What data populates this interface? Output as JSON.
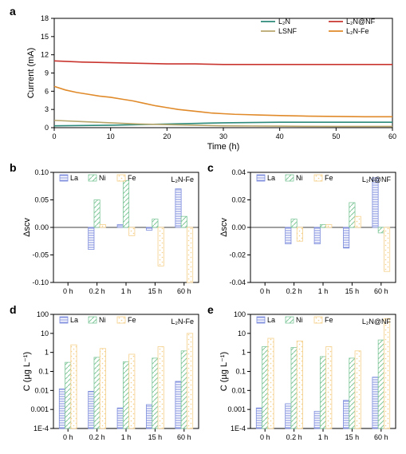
{
  "labels": {
    "a": "a",
    "b": "b",
    "c": "c",
    "d": "d",
    "e": "e"
  },
  "palette": {
    "la": "#7b8bdc",
    "ni": "#7fc79a",
    "fe": "#f5d08a",
    "l2n": "#2b8a7a",
    "l2n_nf": "#c9352e",
    "lsnf": "#b7a66b",
    "l2n_fe": "#e08a2a",
    "axis": "#000000",
    "grid": "#cccccc",
    "bg": "#ffffff"
  },
  "panelA": {
    "title": "Time (h)",
    "ylab": "Current (mA)",
    "xlim": [
      0,
      60
    ],
    "ylim": [
      0,
      18
    ],
    "xticks": [
      0,
      10,
      20,
      30,
      40,
      50,
      60
    ],
    "yticks": [
      0,
      3,
      6,
      9,
      12,
      15,
      18
    ],
    "legend": [
      {
        "name": "L₂N",
        "key": "l2n"
      },
      {
        "name": "L₂N@NF",
        "key": "l2n_nf"
      },
      {
        "name": "LSNF",
        "key": "lsnf"
      },
      {
        "name": "L₂N-Fe",
        "key": "l2n_fe"
      }
    ],
    "series": {
      "l2n": [
        [
          0,
          0.3
        ],
        [
          5,
          0.35
        ],
        [
          10,
          0.4
        ],
        [
          15,
          0.5
        ],
        [
          20,
          0.6
        ],
        [
          25,
          0.7
        ],
        [
          30,
          0.8
        ],
        [
          35,
          0.85
        ],
        [
          40,
          0.9
        ],
        [
          45,
          0.9
        ],
        [
          50,
          0.9
        ],
        [
          55,
          0.9
        ],
        [
          60,
          0.9
        ]
      ],
      "lsnf": [
        [
          0,
          1.2
        ],
        [
          5,
          1.0
        ],
        [
          10,
          0.8
        ],
        [
          15,
          0.6
        ],
        [
          20,
          0.5
        ],
        [
          25,
          0.4
        ],
        [
          30,
          0.3
        ],
        [
          35,
          0.28
        ],
        [
          40,
          0.25
        ],
        [
          45,
          0.22
        ],
        [
          50,
          0.2
        ],
        [
          55,
          0.2
        ],
        [
          60,
          0.2
        ]
      ],
      "l2n_fe": [
        [
          0,
          6.8
        ],
        [
          2,
          6.2
        ],
        [
          4,
          5.8
        ],
        [
          6,
          5.5
        ],
        [
          8,
          5.2
        ],
        [
          10,
          5.0
        ],
        [
          12,
          4.7
        ],
        [
          14,
          4.4
        ],
        [
          16,
          4.0
        ],
        [
          18,
          3.6
        ],
        [
          20,
          3.3
        ],
        [
          22,
          3.0
        ],
        [
          24,
          2.8
        ],
        [
          26,
          2.6
        ],
        [
          28,
          2.4
        ],
        [
          30,
          2.3
        ],
        [
          32,
          2.2
        ],
        [
          34,
          2.15
        ],
        [
          36,
          2.1
        ],
        [
          40,
          2.0
        ],
        [
          45,
          1.9
        ],
        [
          50,
          1.85
        ],
        [
          55,
          1.8
        ],
        [
          60,
          1.8
        ]
      ],
      "l2n_nf": [
        [
          0,
          11.0
        ],
        [
          5,
          10.8
        ],
        [
          10,
          10.7
        ],
        [
          15,
          10.6
        ],
        [
          20,
          10.5
        ],
        [
          25,
          10.5
        ],
        [
          30,
          10.4
        ],
        [
          35,
          10.4
        ],
        [
          40,
          10.4
        ],
        [
          45,
          10.4
        ],
        [
          50,
          10.4
        ],
        [
          55,
          10.4
        ],
        [
          60,
          10.4
        ]
      ]
    }
  },
  "panelB": {
    "title": "",
    "ylab": "Δscv",
    "label": "L₂N-Fe",
    "ylim": [
      -0.1,
      0.1
    ],
    "yticks": [
      -0.1,
      -0.05,
      0.0,
      0.05,
      0.1
    ],
    "cats": [
      "0 h",
      "0.2 h",
      "1 h",
      "15 h",
      "60 h"
    ],
    "legend": [
      "La",
      "Ni",
      "Fe"
    ],
    "data": {
      "La": [
        0,
        -0.04,
        0.005,
        -0.005,
        0.07
      ],
      "Ni": [
        0,
        0.05,
        0.085,
        0.015,
        0.02
      ],
      "Fe": [
        0,
        0.005,
        -0.015,
        -0.07,
        -0.1
      ]
    }
  },
  "panelC": {
    "title": "",
    "ylab": "Δscv",
    "label": "L₂N@NF",
    "ylim": [
      -0.04,
      0.04
    ],
    "yticks": [
      -0.04,
      -0.02,
      0.0,
      0.02,
      0.04
    ],
    "cats": [
      "0 h",
      "0.2 h",
      "1 h",
      "15 h",
      "60 h"
    ],
    "legend": [
      "La",
      "Ni",
      "Fe"
    ],
    "data": {
      "La": [
        0,
        -0.012,
        -0.012,
        -0.015,
        0.036
      ],
      "Ni": [
        0,
        0.006,
        0.002,
        0.018,
        -0.004
      ],
      "Fe": [
        0,
        -0.01,
        0.002,
        0.008,
        -0.032
      ]
    }
  },
  "panelD": {
    "title": "",
    "ylab": "C (µg L⁻¹)",
    "label": "L₂N-Fe",
    "ylim": [
      0.0001,
      100
    ],
    "yticks": [
      0.0001,
      0.001,
      0.01,
      0.1,
      1,
      10,
      100
    ],
    "yticklabels": [
      "1E-4",
      "0.001",
      "0.01",
      "0.1",
      "1",
      "10",
      "100"
    ],
    "cats": [
      "0 h",
      "0.2 h",
      "1 h",
      "15 h",
      "60 h"
    ],
    "legend": [
      "La",
      "Ni",
      "Fe"
    ],
    "data": {
      "La": [
        0.012,
        0.009,
        0.0012,
        0.0018,
        0.03
      ],
      "Ni": [
        0.3,
        0.55,
        0.32,
        0.5,
        1.2
      ],
      "Fe": [
        2.5,
        1.6,
        0.8,
        2.0,
        10
      ]
    }
  },
  "panelE": {
    "title": "",
    "ylab": "C (µg L⁻¹)",
    "label": "L₂N@NF",
    "ylim": [
      0.0001,
      100
    ],
    "yticks": [
      0.0001,
      0.001,
      0.01,
      0.1,
      1,
      10,
      100
    ],
    "yticklabels": [
      "1E-4",
      "0.001",
      "0.01",
      "0.1",
      "1",
      "10",
      "100"
    ],
    "cats": [
      "0 h",
      "0.2 h",
      "1 h",
      "15 h",
      "60 h"
    ],
    "legend": [
      "La",
      "Ni",
      "Fe"
    ],
    "data": {
      "La": [
        0.0012,
        0.002,
        0.0008,
        0.003,
        0.05
      ],
      "Ni": [
        2.0,
        1.8,
        0.6,
        0.5,
        4.5
      ],
      "Fe": [
        5.5,
        4.0,
        2.0,
        1.2,
        60
      ]
    }
  }
}
